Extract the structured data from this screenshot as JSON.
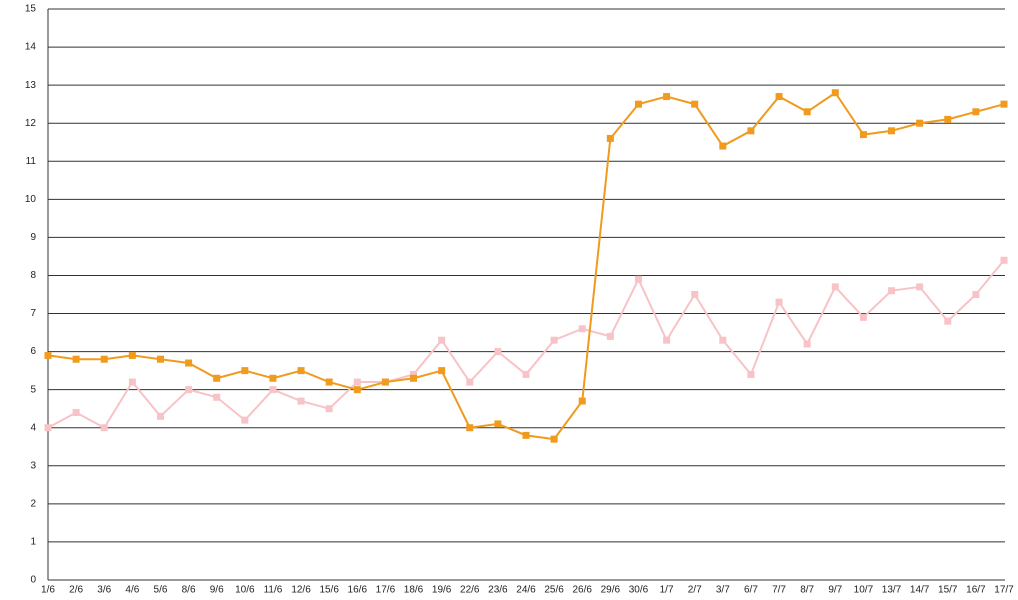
{
  "chart_data": {
    "type": "line",
    "categories": [
      "1/6",
      "2/6",
      "3/6",
      "4/6",
      "5/6",
      "8/6",
      "9/6",
      "10/6",
      "11/6",
      "12/6",
      "15/6",
      "16/6",
      "17/6",
      "18/6",
      "19/6",
      "22/6",
      "23/6",
      "24/6",
      "25/6",
      "26/6",
      "29/6",
      "30/6",
      "1/7",
      "2/7",
      "3/7",
      "6/7",
      "7/7",
      "8/7",
      "9/7",
      "10/7",
      "13/7",
      "14/7",
      "15/7",
      "16/7",
      "17/7"
    ],
    "series": [
      {
        "color": "#f7c3c6",
        "values": [
          4.0,
          4.4,
          4.0,
          5.2,
          4.3,
          5.0,
          4.8,
          4.2,
          5.0,
          4.7,
          4.5,
          5.2,
          5.2,
          5.4,
          6.3,
          5.2,
          6.0,
          5.4,
          6.3,
          6.6,
          6.4,
          7.9,
          6.3,
          7.5,
          6.3,
          5.4,
          7.3,
          6.2,
          7.7,
          6.9,
          7.6,
          7.7,
          6.8,
          7.5,
          8.4
        ]
      },
      {
        "color": "#f09a1e",
        "values": [
          5.9,
          5.8,
          5.8,
          5.9,
          5.8,
          5.7,
          5.3,
          5.5,
          5.3,
          5.5,
          5.2,
          5.0,
          5.2,
          5.3,
          5.5,
          4.0,
          4.1,
          3.8,
          3.7,
          4.7,
          11.6,
          12.5,
          12.7,
          12.5,
          11.4,
          11.8,
          12.7,
          12.3,
          12.8,
          11.7,
          11.8,
          12.0,
          12.1,
          12.3,
          12.5
        ]
      }
    ],
    "ylim": [
      0,
      15
    ],
    "yticks": [
      0,
      1,
      2,
      3,
      4,
      5,
      6,
      7,
      8,
      9,
      10,
      11,
      12,
      13,
      14,
      15
    ],
    "grid": true
  }
}
